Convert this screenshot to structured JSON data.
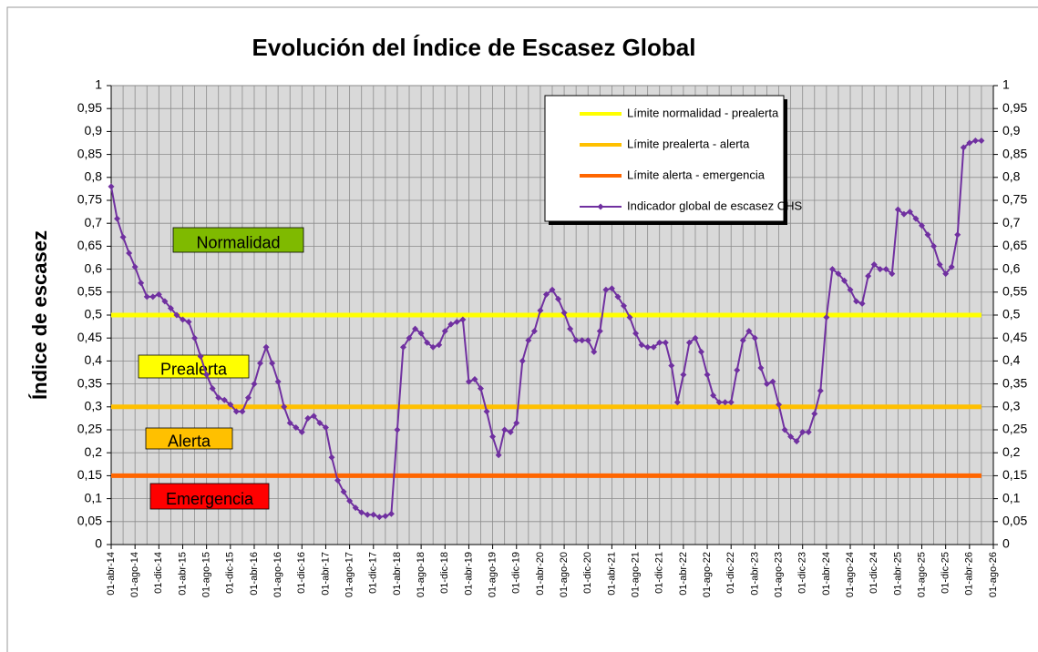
{
  "chart_data": {
    "type": "line",
    "title": "Evolución del Índice de Escasez Global",
    "y_label": "Índice de escasez",
    "categories": [
      "01-abr-14",
      null,
      null,
      null,
      "01-ago-14",
      null,
      null,
      null,
      "01-dic-14",
      null,
      null,
      null,
      "01-abr-15",
      null,
      null,
      null,
      "01-ago-15",
      null,
      null,
      null,
      "01-dic-15",
      null,
      null,
      null,
      "01-abr-16",
      null,
      null,
      null,
      "01-ago-16",
      null,
      null,
      null,
      "01-dic-16",
      null,
      null,
      null,
      "01-abr-17",
      null,
      null,
      null,
      "01-ago-17",
      null,
      null,
      null,
      "01-dic-17",
      null,
      null,
      null,
      "01-abr-18",
      null,
      null,
      null,
      "01-ago-18",
      null,
      null,
      null,
      "01-dic-18",
      null,
      null,
      null,
      "01-abr-19",
      null,
      null,
      null,
      "01-ago-19",
      null,
      null,
      null,
      "01-dic-19",
      null,
      null,
      null,
      "01-abr-20",
      null,
      null,
      null,
      "01-ago-20",
      null,
      null,
      null,
      "01-dic-20",
      null,
      null,
      null,
      "01-abr-21",
      null,
      null,
      null,
      "01-ago-21",
      null,
      null,
      null,
      "01-dic-21",
      null,
      null,
      null,
      "01-abr-22",
      null,
      null,
      null,
      "01-ago-22",
      null,
      null,
      null,
      "01-dic-22",
      null,
      null,
      null,
      "01-abr-23",
      null,
      null,
      null,
      "01-ago-23",
      null,
      null,
      null,
      "01-dic-23",
      null,
      null,
      null,
      "01-abr-24",
      null,
      null,
      null,
      "01-ago-24",
      null,
      null,
      null,
      "01-dic-24",
      null,
      null,
      null,
      "01-abr-25",
      null,
      null,
      null,
      "01-ago-25",
      null,
      null,
      null,
      "01-dic-25",
      null,
      null,
      null,
      "01-abr-26",
      null,
      null,
      null,
      "01-ago-26"
    ],
    "series": [
      {
        "name": "Indicador global de escasez CHS",
        "color": "#7030a0",
        "values": [
          0.78,
          0.71,
          0.67,
          0.635,
          0.605,
          0.57,
          0.54,
          0.54,
          0.545,
          0.53,
          0.515,
          0.5,
          0.49,
          0.485,
          0.45,
          0.41,
          0.37,
          0.34,
          0.32,
          0.315,
          0.305,
          0.29,
          0.29,
          0.32,
          0.35,
          0.395,
          0.43,
          0.395,
          0.355,
          0.3,
          0.265,
          0.255,
          0.245,
          0.275,
          0.28,
          0.265,
          0.255,
          0.19,
          0.14,
          0.115,
          0.095,
          0.08,
          0.07,
          0.065,
          0.065,
          0.06,
          0.062,
          0.067,
          0.25,
          0.43,
          0.45,
          0.47,
          0.46,
          0.44,
          0.43,
          0.435,
          0.465,
          0.48,
          0.485,
          0.49,
          0.355,
          0.36,
          0.34,
          0.29,
          0.235,
          0.195,
          0.25,
          0.245,
          0.265,
          0.4,
          0.445,
          0.465,
          0.51,
          0.545,
          0.555,
          0.535,
          0.505,
          0.47,
          0.445,
          0.445,
          0.445,
          0.42,
          0.465,
          0.555,
          0.558,
          0.54,
          0.52,
          0.495,
          0.46,
          0.435,
          0.43,
          0.43,
          0.44,
          0.44,
          0.39,
          0.31,
          0.37,
          0.44,
          0.45,
          0.42,
          0.37,
          0.325,
          0.31,
          0.31,
          0.31,
          0.38,
          0.445,
          0.465,
          0.45,
          0.385,
          0.35,
          0.355,
          0.305,
          0.25,
          0.235,
          0.225,
          0.245,
          0.245,
          0.285,
          0.335,
          0.495,
          0.6,
          0.59,
          0.575,
          0.555,
          0.53,
          0.525,
          0.585,
          0.61,
          0.6,
          0.6,
          0.59,
          0.73,
          0.72,
          0.725,
          0.71,
          0.695,
          0.675,
          0.65,
          0.61,
          0.59,
          0.605,
          0.675,
          0.865,
          0.875,
          0.88,
          0.88,
          null,
          null
        ]
      }
    ],
    "limits": [
      {
        "name": "Límite normalidad - prealerta",
        "color": "#ffff00",
        "value": 0.5
      },
      {
        "name": "Límite prealerta - alerta",
        "color": "#ffc000",
        "value": 0.3
      },
      {
        "name": "Límite alerta - emergencia",
        "color": "#ff6600",
        "value": 0.15
      }
    ],
    "annotations": [
      {
        "text": "Normalidad",
        "color": "#7fba00"
      },
      {
        "text": "Prealerta",
        "color": "#ffff00"
      },
      {
        "text": "Alerta",
        "color": "#ffc000"
      },
      {
        "text": "Emergencia",
        "color": "#ff0000"
      }
    ],
    "ylim": [
      0,
      1
    ],
    "yticks": [
      0,
      {
        "value": 0.05,
        "label": "0,05"
      },
      {
        "value": 0.1,
        "label": "0,1"
      },
      {
        "value": 0.15,
        "label": "0,15"
      },
      {
        "value": 0.2,
        "label": "0,2"
      },
      {
        "value": 0.25,
        "label": "0,25"
      },
      {
        "value": 0.3,
        "label": "0,3"
      },
      {
        "value": 0.35,
        "label": "0,35"
      },
      {
        "value": 0.4,
        "label": "0,4"
      },
      {
        "value": 0.45,
        "label": "0,45"
      },
      {
        "value": 0.5,
        "label": "0,5"
      },
      {
        "value": 0.55,
        "label": "0,55"
      },
      {
        "value": 0.6,
        "label": "0,6"
      },
      {
        "value": 0.65,
        "label": "0,65"
      },
      {
        "value": 0.7,
        "label": "0,7"
      },
      {
        "value": 0.75,
        "label": "0,75"
      },
      {
        "value": 0.8,
        "label": "0,8"
      },
      {
        "value": 0.85,
        "label": "0,85"
      },
      {
        "value": 0.9,
        "label": "0,9"
      },
      {
        "value": 0.95,
        "label": "0,95"
      },
      1
    ],
    "y2lim": [
      0,
      1
    ],
    "y2ticks": [
      0,
      {
        "value": 0.05,
        "label": "0,05"
      },
      {
        "value": 0.1,
        "label": "0,1"
      },
      {
        "value": 0.15,
        "label": "0,15"
      },
      {
        "value": 0.2,
        "label": "0,2"
      },
      {
        "value": 0.25,
        "label": "0,25"
      },
      {
        "value": 0.3,
        "label": "0,3"
      },
      {
        "value": 0.35,
        "label": "0,35"
      },
      {
        "value": 0.4,
        "label": "0,4"
      },
      {
        "value": 0.45,
        "label": "0,45"
      },
      {
        "value": 0.5,
        "label": "0,5"
      },
      {
        "value": 0.55,
        "label": "0,55"
      },
      {
        "value": 0.6,
        "label": "0,6"
      },
      {
        "value": 0.65,
        "label": "0,65"
      },
      {
        "value": 0.7,
        "label": "0,7"
      },
      {
        "value": 0.75,
        "label": "0,75"
      },
      {
        "value": 0.8,
        "label": "0,8"
      },
      {
        "value": 0.85,
        "label": "0,85"
      },
      {
        "value": 0.9,
        "label": "0,9"
      },
      {
        "value": 0.95,
        "label": "0,95"
      },
      1
    ],
    "grid": true,
    "legend": "top-right",
    "plot_background": "#d9d9d9"
  }
}
